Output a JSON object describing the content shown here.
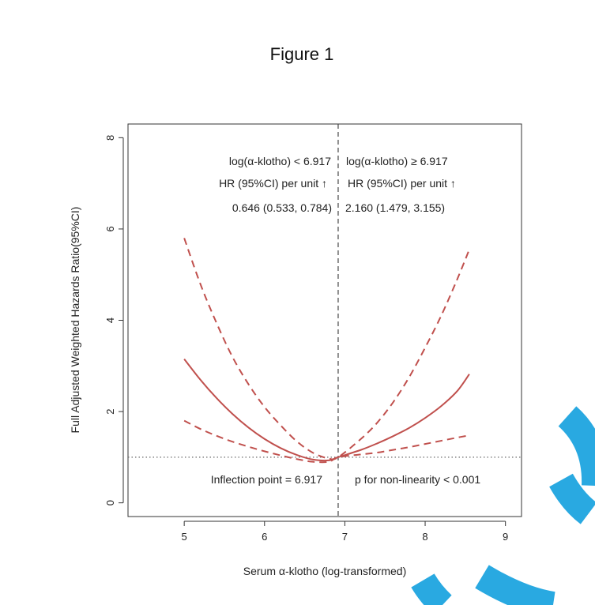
{
  "figure_title": "Figure 1",
  "watermark_color": "#29a9e1",
  "curve_color": "#c0504d",
  "chart_data": {
    "type": "line",
    "xlabel": "Serum α-klotho (log-transformed)",
    "ylabel": "Full Adjusted Weighted Hazards Ratio(95%CI)",
    "xlim": [
      4.3,
      9.2
    ],
    "ylim": [
      -0.3,
      8.3
    ],
    "xticks": [
      "5",
      "6",
      "7",
      "8",
      "9"
    ],
    "yticks": [
      "0",
      "2",
      "4",
      "6",
      "8"
    ],
    "grid": false,
    "reference_lines": {
      "horizontal_y": 1,
      "vertical_x": 6.917
    },
    "series": [
      {
        "style": "solid",
        "x": [
          5.0,
          5.2,
          5.4,
          5.6,
          5.8,
          6.0,
          6.2,
          6.4,
          6.6,
          6.8,
          6.917,
          7.2,
          7.4,
          7.6,
          7.8,
          8.0,
          8.2,
          8.4,
          8.55
        ],
        "y": [
          3.15,
          2.7,
          2.3,
          1.95,
          1.65,
          1.4,
          1.2,
          1.05,
          0.95,
          0.93,
          1.0,
          1.16,
          1.3,
          1.46,
          1.64,
          1.86,
          2.12,
          2.45,
          2.82
        ]
      },
      {
        "style": "dashed",
        "x": [
          5.0,
          5.2,
          5.4,
          5.6,
          5.8,
          6.0,
          6.2,
          6.4,
          6.6,
          6.8,
          6.917,
          7.2,
          7.4,
          7.6,
          7.8,
          8.0,
          8.2,
          8.4,
          8.55
        ],
        "y": [
          5.8,
          4.8,
          3.95,
          3.2,
          2.6,
          2.1,
          1.7,
          1.35,
          1.1,
          0.97,
          1.0,
          1.4,
          1.75,
          2.2,
          2.75,
          3.4,
          4.1,
          4.9,
          5.55
        ]
      },
      {
        "style": "dashed",
        "x": [
          5.0,
          5.2,
          5.4,
          5.6,
          5.8,
          6.0,
          6.2,
          6.4,
          6.6,
          6.8,
          6.917,
          7.2,
          7.4,
          7.6,
          7.8,
          8.0,
          8.2,
          8.4,
          8.55
        ],
        "y": [
          1.8,
          1.62,
          1.47,
          1.34,
          1.23,
          1.13,
          1.04,
          0.96,
          0.9,
          0.9,
          1.0,
          1.06,
          1.1,
          1.16,
          1.22,
          1.29,
          1.36,
          1.43,
          1.48
        ]
      }
    ],
    "annotations": {
      "left_condition": "log(α-klotho) < 6.917",
      "left_hr_label": "HR (95%CI) per unit ↑",
      "left_hr_value": "0.646 (0.533, 0.784)",
      "right_condition": "log(α-klotho) ≥ 6.917",
      "right_hr_label": "HR (95%CI) per unit ↑",
      "right_hr_value": "2.160 (1.479, 3.155)",
      "inflection": "Inflection point = 6.917",
      "nonlinearity": "p for non-linearity < 0.001"
    }
  }
}
